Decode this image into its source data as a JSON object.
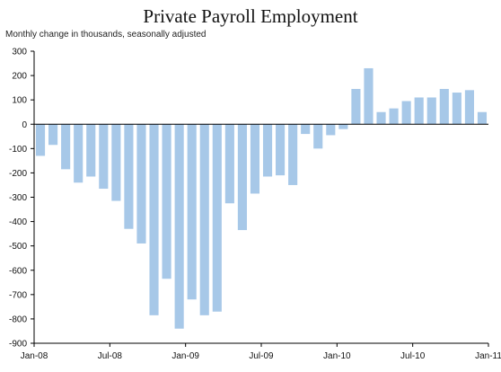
{
  "chart_data": {
    "type": "bar",
    "title": "Private Payroll Employment",
    "subtitle": "Monthly change in thousands, seasonally adjusted",
    "xlabel": "",
    "ylabel": "",
    "ylim": [
      -900,
      300
    ],
    "yticks": [
      300,
      200,
      100,
      0,
      -100,
      -200,
      -300,
      -400,
      -500,
      -600,
      -700,
      -800,
      -900
    ],
    "ytick_labels": [
      "300",
      "200",
      "100",
      "0",
      "-100",
      "-200",
      "-300",
      "-400",
      "-500",
      "-600",
      "-700",
      "-800",
      "-900"
    ],
    "xtick_labels": [
      "Jan-08",
      "Jul-08",
      "Jan-09",
      "Jul-09",
      "Jan-10",
      "Jul-10",
      "Jan-11"
    ],
    "grid": false,
    "bar_color": "#a7c8e8",
    "categories": [
      "Jan-08",
      "Feb-08",
      "Mar-08",
      "Apr-08",
      "May-08",
      "Jun-08",
      "Jul-08",
      "Aug-08",
      "Sep-08",
      "Oct-08",
      "Nov-08",
      "Dec-08",
      "Jan-09",
      "Feb-09",
      "Mar-09",
      "Apr-09",
      "May-09",
      "Jun-09",
      "Jul-09",
      "Aug-09",
      "Sep-09",
      "Oct-09",
      "Nov-09",
      "Dec-09",
      "Jan-10",
      "Feb-10",
      "Mar-10",
      "Apr-10",
      "May-10",
      "Jun-10",
      "Jul-10",
      "Aug-10",
      "Sep-10",
      "Oct-10",
      "Nov-10",
      "Dec-10"
    ],
    "values": [
      -130,
      -85,
      -185,
      -240,
      -215,
      -265,
      -315,
      -430,
      -490,
      -785,
      -635,
      -840,
      -720,
      -785,
      -770,
      -325,
      -435,
      -285,
      -215,
      -210,
      -250,
      -40,
      -100,
      -45,
      -20,
      145,
      230,
      50,
      65,
      95,
      110,
      110,
      145,
      130,
      140,
      50
    ]
  }
}
